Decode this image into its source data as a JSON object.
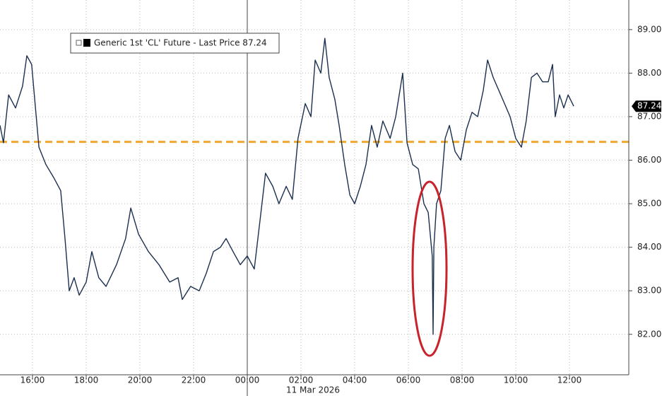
{
  "chart_data": {
    "type": "line",
    "series": [
      {
        "name": "Generic 1st 'CL' Future - Last Price 87.24",
        "color": "#1b2f4f",
        "values": [
          86.8,
          86.4,
          87.5,
          87.2,
          87.7,
          88.4,
          88.2,
          87.2,
          86.3,
          85.9,
          85.6,
          85.3,
          84.2,
          83.0,
          83.3,
          82.9,
          83.2,
          83.9,
          83.3,
          83.1,
          83.6,
          84.2,
          84.9,
          84.3,
          83.9,
          83.6,
          83.2,
          83.3,
          82.8,
          83.1,
          83.0,
          83.4,
          83.9,
          84.0,
          84.2,
          83.9,
          83.6,
          83.8,
          83.5,
          84.6,
          85.7,
          85.4,
          85.0,
          85.4,
          85.1,
          86.5,
          87.3,
          87.0,
          88.3,
          88.0,
          88.8,
          87.9,
          87.4,
          86.8,
          85.9,
          85.2,
          85.0,
          85.4,
          85.9,
          86.8,
          86.3,
          86.9,
          86.5,
          87.0,
          88.0,
          86.4,
          85.9,
          85.8,
          85.0,
          84.8,
          83.8,
          82.0,
          84.0,
          85.0,
          85.3,
          86.5,
          86.8,
          86.2,
          86.0,
          86.7,
          87.1,
          87.0,
          87.6,
          88.3,
          87.9,
          87.6,
          87.3,
          87.0,
          86.5,
          86.3,
          86.9,
          87.9,
          88.0,
          87.8,
          87.8,
          88.2,
          87.0,
          87.5,
          87.2,
          87.5,
          87.24
        ]
      }
    ],
    "x": [
      -9.21,
      -9.08,
      -8.89,
      -8.63,
      -8.37,
      -8.21,
      -8.03,
      -7.89,
      -7.76,
      -7.5,
      -7.21,
      -6.95,
      -6.79,
      -6.63,
      -6.45,
      -6.26,
      -6.0,
      -5.79,
      -5.53,
      -5.26,
      -4.87,
      -4.53,
      -4.34,
      -4.05,
      -3.68,
      -3.29,
      -2.89,
      -2.58,
      -2.42,
      -2.11,
      -1.79,
      -1.53,
      -1.26,
      -1.0,
      -0.79,
      -0.53,
      -0.26,
      0,
      0.26,
      0.47,
      0.68,
      0.95,
      1.18,
      1.45,
      1.68,
      1.89,
      2.16,
      2.37,
      2.53,
      2.74,
      2.89,
      3.05,
      3.26,
      3.42,
      3.63,
      3.82,
      4.0,
      4.21,
      4.42,
      4.63,
      4.84,
      5.05,
      5.32,
      5.53,
      5.79,
      5.95,
      6.16,
      6.37,
      6.58,
      6.74,
      6.89,
      6.92,
      6.95,
      7.05,
      7.21,
      7.37,
      7.53,
      7.74,
      7.95,
      8.16,
      8.37,
      8.58,
      8.79,
      8.95,
      9.16,
      9.37,
      9.58,
      9.79,
      10.0,
      10.21,
      10.39,
      10.58,
      10.79,
      11.0,
      11.21,
      11.37,
      11.47,
      11.63,
      11.79,
      11.95,
      12.16
    ],
    "xlim": [
      -9.21,
      14.21
    ],
    "xticks": [
      {
        "value": -8,
        "label": "16:00"
      },
      {
        "value": -6,
        "label": "18:00"
      },
      {
        "value": -4,
        "label": "20:00"
      },
      {
        "value": -2,
        "label": "22:00"
      },
      {
        "value": 0,
        "label": "00:00"
      },
      {
        "value": 2,
        "label": "02:00"
      },
      {
        "value": 4,
        "label": "04:00"
      },
      {
        "value": 6,
        "label": "06:00"
      },
      {
        "value": 8,
        "label": "08:00"
      },
      {
        "value": 10,
        "label": "10:00"
      },
      {
        "value": 12,
        "label": "12:00"
      }
    ],
    "date_label": "11 Mar 2026",
    "ylim": [
      81.07,
      89.68
    ],
    "yticks": [
      {
        "value": 82,
        "label": "82.00"
      },
      {
        "value": 83,
        "label": "83.00"
      },
      {
        "value": 84,
        "label": "84.00"
      },
      {
        "value": 85,
        "label": "85.00"
      },
      {
        "value": 86,
        "label": "86.00"
      },
      {
        "value": 87,
        "label": "87.00"
      },
      {
        "value": 88,
        "label": "88.00"
      },
      {
        "value": 89,
        "label": "89.00"
      }
    ],
    "last_price": 87.24,
    "reference_line": {
      "value": 86.42,
      "color": "#f0a830"
    },
    "grid": true
  }
}
